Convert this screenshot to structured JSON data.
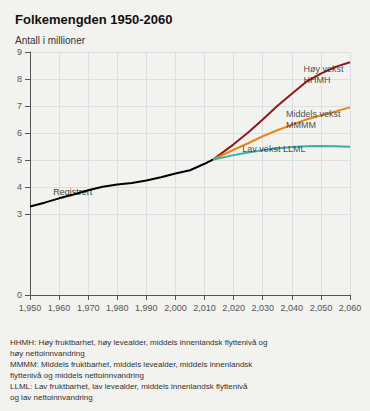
{
  "chart_data": {
    "type": "line",
    "title": "Folkemengden 1950-2060",
    "ylabel": "Antall i millioner",
    "xlim": [
      1950,
      2060
    ],
    "xticks": [
      1950,
      1960,
      1970,
      1980,
      1990,
      2000,
      2010,
      2020,
      2030,
      2040,
      2050,
      2060
    ],
    "ylim": [
      0,
      9
    ],
    "yticks": [
      0,
      3,
      4,
      5,
      6,
      7,
      8,
      9
    ],
    "grid": true,
    "series": [
      {
        "color": "#000000",
        "x": [
          1950,
          1955,
          1960,
          1965,
          1970,
          1975,
          1980,
          1985,
          1990,
          1995,
          2000,
          2005,
          2010,
          2013
        ],
        "values": [
          3.28,
          3.42,
          3.58,
          3.72,
          3.88,
          4.01,
          4.09,
          4.15,
          4.24,
          4.36,
          4.5,
          4.62,
          4.86,
          5.02
        ]
      },
      {
        "color": "#8b1a1a",
        "x": [
          2013,
          2015,
          2020,
          2025,
          2030,
          2035,
          2040,
          2045,
          2050,
          2055,
          2060
        ],
        "values": [
          5.02,
          5.18,
          5.58,
          6.02,
          6.5,
          7.0,
          7.45,
          7.9,
          8.2,
          8.45,
          8.62
        ]
      },
      {
        "color": "#e8861a",
        "x": [
          2013,
          2015,
          2020,
          2025,
          2030,
          2035,
          2040,
          2045,
          2050,
          2055,
          2060
        ],
        "values": [
          5.02,
          5.12,
          5.38,
          5.62,
          5.88,
          6.1,
          6.3,
          6.5,
          6.65,
          6.8,
          6.95
        ]
      },
      {
        "color": "#3aadad",
        "x": [
          2013,
          2015,
          2020,
          2025,
          2030,
          2035,
          2040,
          2045,
          2050,
          2055,
          2060
        ],
        "values": [
          5.02,
          5.06,
          5.18,
          5.28,
          5.36,
          5.43,
          5.48,
          5.51,
          5.52,
          5.51,
          5.49
        ]
      }
    ],
    "annotations": [
      {
        "text": "Registrert",
        "x": 1958,
        "y": 3.6,
        "color": "#000000"
      },
      {
        "text": "Høy vekst\nHHMH",
        "x": 2044,
        "y": 7.75,
        "color": "#222222"
      },
      {
        "text": "Middels vekst\nMMMM",
        "x": 2038,
        "y": 6.08,
        "color": "#222222"
      },
      {
        "text": "Lav vekst LLML",
        "x": 2023,
        "y": 5.2,
        "color": "#222222"
      }
    ],
    "footnote": [
      "HHMH: Høy fruktbarhet, høy levealder, middels innenlandsk flyttenivå og",
      "høy nettoinnvandring",
      "MMMM: Middels fruktbarhet, middels levealder, middels innenlandsk",
      "flyttenivå og middels nettoinnvandring",
      "LLML: Lav fruktbarhet, lav levealder, middels innenlandsk flyttenivå",
      "og lav nettoinnvandring"
    ]
  }
}
